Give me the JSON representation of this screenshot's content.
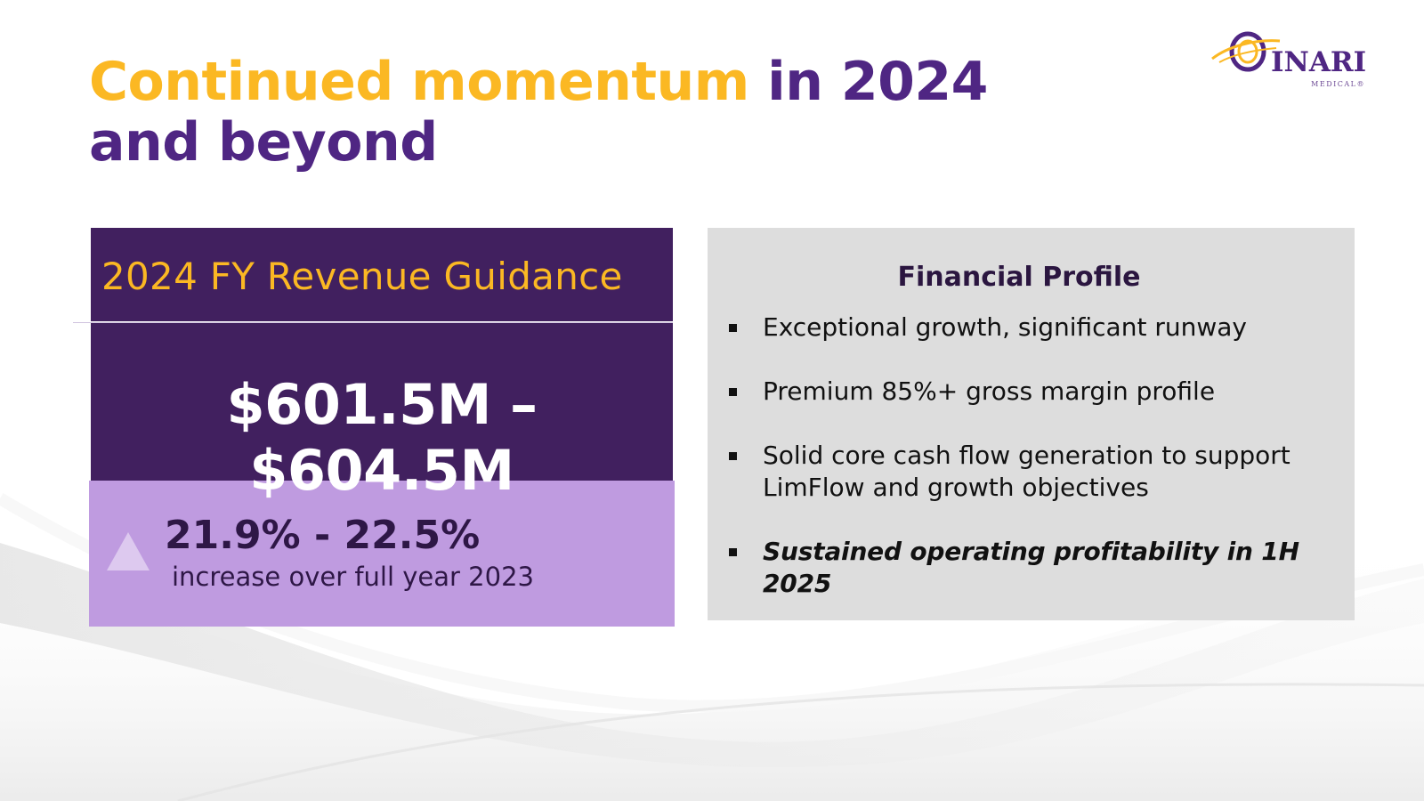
{
  "title": {
    "accent": "Continued momentum",
    "main_line1": " in 2024",
    "main_line2": "and beyond"
  },
  "logo": {
    "name": "INARI",
    "sub": "MEDICAL®"
  },
  "guidance": {
    "title": "2024 FY Revenue Guidance",
    "value": "$601.5M – $604.5M",
    "growth_pct": "21.9% - 22.5%",
    "growth_desc": "increase over full year 2023",
    "growth_icon": "up-triangle-icon"
  },
  "profile": {
    "title": "Financial Profile",
    "bullets": [
      "Exceptional growth, significant runway",
      "Premium 85%+ gross margin profile",
      "Solid core cash flow generation to support LimFlow and growth objectives",
      "Sustained operating profitability in 1H 2025"
    ]
  },
  "colors": {
    "accent_gold": "#fbb823",
    "brand_purple": "#4f2683",
    "dark_purple_panel": "#41205f",
    "light_purple_panel": "#bf9be0",
    "profile_gray": "#dcdcdc"
  }
}
